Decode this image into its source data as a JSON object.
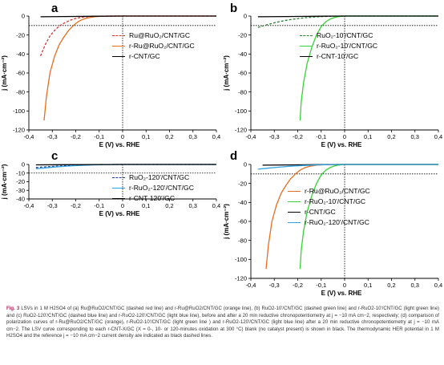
{
  "figure": {
    "caption_label": "Fig. 3",
    "caption_text": "LSVs in 1 M H2SO4 of (a) Ru@RuO2/CNT/GC (dashed red line) and r-Ru@RuO2/CNT/GC (orange line), (b) RuO2-10'/CNT/GC (dashed green line) and r-RuO2-10'/CNT/GC (light green line) and (c) RuO2-120'/CNT/GC (dashed blue line) and r-RuO2-120'/CNT/GC (light blue line), before and after a 20 min reductive chronopotentiometry at j = −10 mA cm−2, respectively; (d) comparison of polarization curves of r-Ru@RuO2/CNT/GC (orange), r-RuO2-10'/CNT/GC (light green line ) and r-RuO2-120'/CNT/GC (light blue line) after a 20 min reductive chronopotentiometry at j = −10 mA cm−2. The LSV curve corresponding to each r-CNT-X/GC (X = 0-, 10- or 120-minutes oxidation at 300 °C) blank (no catalyst present) is shown in black. The thermodynamic HER potential in 1 M H2SO4 and the reference j = −10 mA cm−2 current density are indicated as black dashed lines."
  },
  "chart_data": [
    {
      "type": "line",
      "panel": "a",
      "xlabel": "E (V) vs. RHE",
      "ylabel": "j (mA·cm⁻²)",
      "xlim": [
        -0.4,
        0.4
      ],
      "ylim": [
        -120,
        0
      ],
      "xticks": [
        "-0,4",
        "-0,3",
        "-0,2",
        "-0,1",
        "0",
        "0,1",
        "0,2",
        "0,3",
        "0,4"
      ],
      "yticks": [
        "0",
        "-20",
        "-40",
        "-60",
        "-80",
        "-100",
        "-120"
      ],
      "reference_j": -10,
      "reference_E": 0,
      "series": [
        {
          "name": "Ru@RuO₂/CNT/GC",
          "color": "#d9302c",
          "dash": true,
          "x": [
            -0.35,
            -0.33,
            -0.31,
            -0.29,
            -0.27,
            -0.25,
            -0.23,
            -0.21,
            -0.19,
            -0.17,
            -0.15,
            -0.12,
            -0.08,
            0,
            0.4
          ],
          "y": [
            -42,
            -30,
            -21,
            -15,
            -10.5,
            -7.5,
            -5,
            -3.2,
            -2,
            -1.2,
            -0.7,
            -0.3,
            -0.1,
            0,
            0
          ]
        },
        {
          "name": "r-Ru@RuO₂/CNT/GC",
          "color": "#e86d1f",
          "dash": false,
          "x": [
            -0.335,
            -0.325,
            -0.31,
            -0.29,
            -0.27,
            -0.25,
            -0.23,
            -0.21,
            -0.19,
            -0.17,
            -0.15,
            -0.12,
            -0.08,
            0,
            0.4
          ],
          "y": [
            -110,
            -85,
            -60,
            -42,
            -30,
            -22,
            -15,
            -10,
            -6,
            -3.5,
            -2,
            -0.7,
            -0.2,
            0,
            0
          ]
        },
        {
          "name": "r-CNT/GC",
          "color": "#000000",
          "dash": false,
          "x": [
            -0.35,
            -0.25,
            -0.1,
            0,
            0.4
          ],
          "y": [
            -0.8,
            -0.5,
            -0.2,
            0,
            0
          ]
        }
      ]
    },
    {
      "type": "line",
      "panel": "b",
      "xlabel": "E (V) vs. RHE",
      "ylabel": "j (mA·cm⁻²)",
      "xlim": [
        -0.4,
        0.4
      ],
      "ylim": [
        -120,
        0
      ],
      "xticks": [
        "-0,4",
        "-0,3",
        "-0,2",
        "-0,1",
        "0",
        "0,1",
        "0,2",
        "0,3",
        "0,4"
      ],
      "yticks": [
        "0",
        "-20",
        "-40",
        "-60",
        "-80",
        "-100",
        "-120"
      ],
      "reference_j": -10,
      "reference_E": 0,
      "series": [
        {
          "name": "RuO₂-10'/CNT/GC",
          "color": "#2e7d32",
          "dash": true,
          "x": [
            -0.37,
            -0.33,
            -0.29,
            -0.25,
            -0.21,
            -0.17,
            -0.13,
            -0.09,
            -0.05,
            0,
            0.4
          ],
          "y": [
            -12,
            -9,
            -6.5,
            -4.5,
            -3,
            -1.8,
            -1,
            -0.5,
            -0.2,
            0,
            0
          ]
        },
        {
          "name": "r-RuO₂-10'/CNT/GC",
          "color": "#34d534",
          "dash": false,
          "x": [
            -0.19,
            -0.185,
            -0.175,
            -0.16,
            -0.14,
            -0.12,
            -0.1,
            -0.08,
            -0.06,
            -0.04,
            -0.02,
            0,
            0.4
          ],
          "y": [
            -110,
            -90,
            -70,
            -50,
            -33,
            -20,
            -11,
            -6,
            -3,
            -1.3,
            -0.4,
            0,
            0
          ]
        },
        {
          "name": "r-CNT-10'/GC",
          "color": "#000000",
          "dash": false,
          "x": [
            -0.37,
            -0.25,
            -0.1,
            0,
            0.4
          ],
          "y": [
            -0.8,
            -0.5,
            -0.2,
            0,
            0
          ]
        }
      ]
    },
    {
      "type": "line",
      "panel": "c",
      "xlabel": "E (V) vs. RHE",
      "ylabel": "j (mA·cm⁻²)",
      "xlim": [
        -0.4,
        0.4
      ],
      "ylim": [
        -40,
        0
      ],
      "xticks": [
        "-0,4",
        "-0,3",
        "-0,2",
        "-0,1",
        "0",
        "0,1",
        "0,2",
        "0,3",
        "0,4"
      ],
      "yticks": [
        "0",
        "-10",
        "-20",
        "-30",
        "-40"
      ],
      "reference_j": -10,
      "reference_E": 0,
      "series": [
        {
          "name": "RuO₂-120'/CNT/GC",
          "color": "#1f3f99",
          "dash": true,
          "x": [
            -0.37,
            -0.33,
            -0.29,
            -0.25,
            -0.21,
            -0.17,
            -0.13,
            -0.09,
            -0.05,
            0,
            0.4
          ],
          "y": [
            -3.5,
            -2.8,
            -2.1,
            -1.5,
            -1.1,
            -0.7,
            -0.4,
            -0.2,
            -0.1,
            0,
            0
          ]
        },
        {
          "name": "r-RuO₂-120'/CNT/GC",
          "color": "#2fa3e0",
          "dash": false,
          "x": [
            -0.37,
            -0.33,
            -0.29,
            -0.25,
            -0.21,
            -0.17,
            -0.13,
            -0.09,
            -0.05,
            0,
            0.4
          ],
          "y": [
            -5,
            -4,
            -3,
            -2.2,
            -1.5,
            -1,
            -0.6,
            -0.3,
            -0.1,
            0,
            0
          ]
        },
        {
          "name": "r-CNT-120'/GC",
          "color": "#000000",
          "dash": false,
          "x": [
            -0.37,
            -0.25,
            -0.1,
            0,
            0.4
          ],
          "y": [
            -0.5,
            -0.3,
            -0.1,
            0,
            0
          ]
        }
      ]
    },
    {
      "type": "line",
      "panel": "d",
      "xlabel": "E (V) vs. RHE",
      "ylabel": "j (mA·cm⁻²)",
      "xlim": [
        -0.4,
        0.4
      ],
      "ylim": [
        -120,
        0
      ],
      "xticks": [
        "-0,4",
        "-0,3",
        "-0,2",
        "-0,1",
        "0",
        "0,1",
        "0,2",
        "0,3",
        "0,4"
      ],
      "yticks": [
        "0",
        "-20",
        "-40",
        "-60",
        "-80",
        "-100",
        "-120"
      ],
      "reference_j": -10,
      "reference_E": 0,
      "series": [
        {
          "name": "r-Ru@RuO₂/CNT/GC",
          "color": "#e86d1f",
          "dash": false,
          "x": [
            -0.335,
            -0.325,
            -0.31,
            -0.29,
            -0.27,
            -0.25,
            -0.23,
            -0.21,
            -0.19,
            -0.17,
            -0.15,
            -0.12,
            -0.08,
            0,
            0.4
          ],
          "y": [
            -110,
            -85,
            -60,
            -42,
            -30,
            -22,
            -15,
            -10,
            -6,
            -3.5,
            -2,
            -0.7,
            -0.2,
            0,
            0
          ]
        },
        {
          "name": "r-RuO₂-10'/CNT/GC",
          "color": "#34d534",
          "dash": false,
          "x": [
            -0.19,
            -0.185,
            -0.175,
            -0.16,
            -0.14,
            -0.12,
            -0.1,
            -0.08,
            -0.06,
            -0.04,
            -0.02,
            0,
            0.4
          ],
          "y": [
            -110,
            -90,
            -70,
            -50,
            -33,
            -20,
            -11,
            -6,
            -3,
            -1.3,
            -0.4,
            0,
            0
          ]
        },
        {
          "name": "r-CNT/GC",
          "color": "#000000",
          "dash": false,
          "x": [
            -0.35,
            -0.25,
            -0.1,
            0,
            0.4
          ],
          "y": [
            -0.8,
            -0.5,
            -0.2,
            0,
            0
          ]
        },
        {
          "name": "r-RuO₂-120'/CNT/GC",
          "color": "#2fa3e0",
          "dash": false,
          "x": [
            -0.37,
            -0.33,
            -0.29,
            -0.25,
            -0.21,
            -0.17,
            -0.13,
            -0.09,
            -0.05,
            0,
            0.4
          ],
          "y": [
            -5,
            -4,
            -3,
            -2.2,
            -1.5,
            -1,
            -0.6,
            -0.3,
            -0.1,
            0,
            0
          ]
        }
      ]
    }
  ]
}
